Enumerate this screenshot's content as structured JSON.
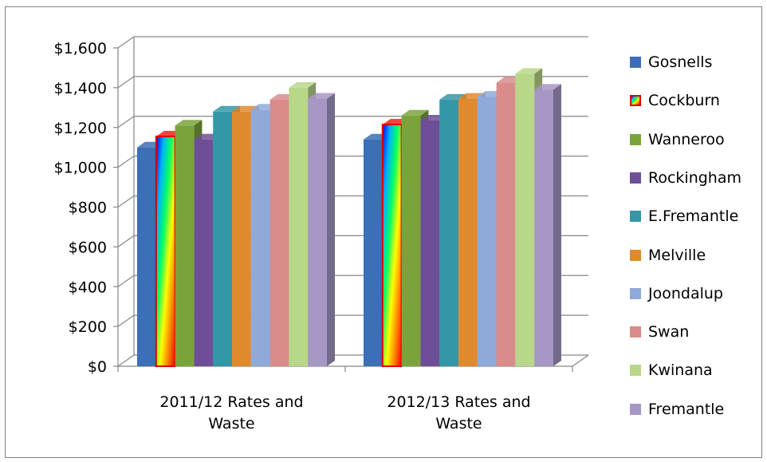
{
  "chart_data": {
    "type": "bar",
    "categories": [
      "2011/12 Rates and\nWaste",
      "2012/13 Rates and\nWaste"
    ],
    "series": [
      {
        "name": "Gosnells",
        "values": [
          1100,
          1140
        ],
        "color": "#3B6FB6"
      },
      {
        "name": "Cockburn",
        "values": [
          1155,
          1215
        ],
        "color": "rainbow"
      },
      {
        "name": "Wanneroo",
        "values": [
          1210,
          1260
        ],
        "color": "#7BA33C"
      },
      {
        "name": "Rockingham",
        "values": [
          1140,
          1235
        ],
        "color": "#6E4F97"
      },
      {
        "name": "E.Fremantle",
        "values": [
          1280,
          1340
        ],
        "color": "#3497A7"
      },
      {
        "name": "Melville",
        "values": [
          1280,
          1345
        ],
        "color": "#E08A2E"
      },
      {
        "name": "Joondalup",
        "values": [
          1290,
          1355
        ],
        "color": "#8FAAD9"
      },
      {
        "name": "Swan",
        "values": [
          1340,
          1425
        ],
        "color": "#D98C8A"
      },
      {
        "name": "Kwinana",
        "values": [
          1400,
          1470
        ],
        "color": "#B9D789"
      },
      {
        "name": "Fremantle",
        "values": [
          1345,
          1390
        ],
        "color": "#A697C4"
      }
    ],
    "y_ticks": [
      "$0",
      "$200",
      "$400",
      "$600",
      "$800",
      "$1,000",
      "$1,200",
      "$1,400",
      "$1,600"
    ],
    "ylim": [
      0,
      1600
    ],
    "grid": true,
    "legend": "right"
  }
}
